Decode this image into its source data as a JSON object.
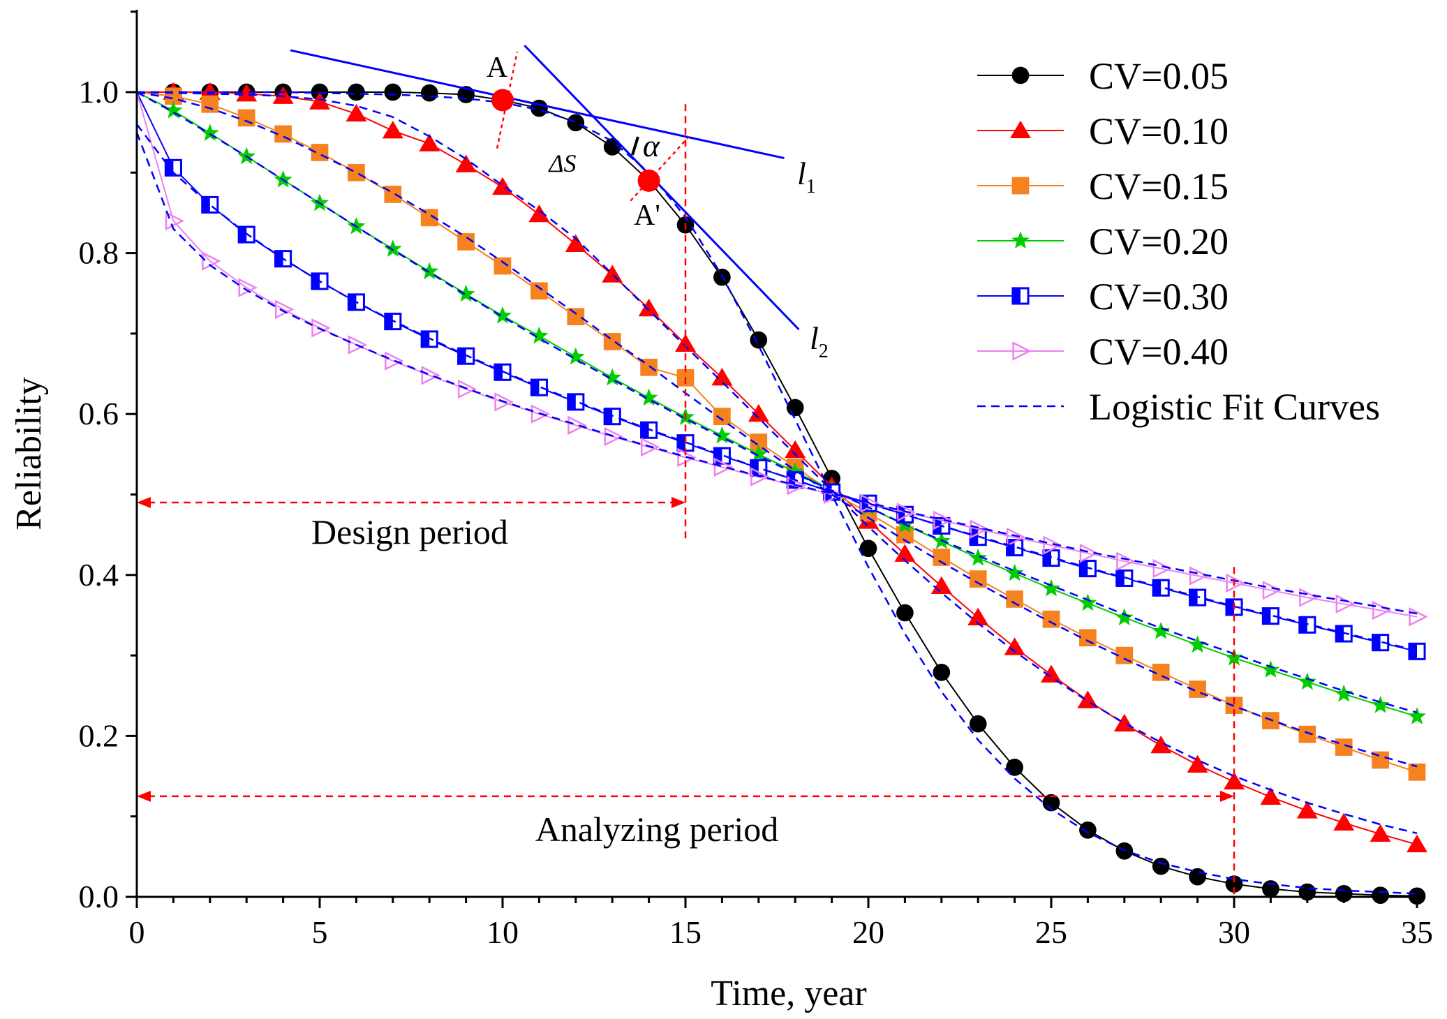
{
  "chart_data": {
    "type": "line",
    "title": "",
    "xlabel": "Time, year",
    "ylabel": "Reliability",
    "xlim": [
      0,
      35
    ],
    "ylim": [
      0,
      1.1
    ],
    "xticks": [
      0,
      5,
      10,
      15,
      20,
      25,
      30,
      35
    ],
    "yticks": [
      0.0,
      0.2,
      0.4,
      0.6,
      0.8,
      1.0
    ],
    "xtick_labels": [
      "0",
      "5",
      "10",
      "15",
      "20",
      "25",
      "30",
      "35"
    ],
    "ytick_labels": [
      "0.0",
      "0.2",
      "0.4",
      "0.6",
      "0.8",
      "1.0"
    ],
    "legend_position": "top-right",
    "x": [
      0,
      1,
      2,
      3,
      4,
      5,
      6,
      7,
      8,
      9,
      10,
      11,
      12,
      13,
      14,
      15,
      16,
      17,
      18,
      19,
      20,
      21,
      22,
      23,
      24,
      25,
      26,
      27,
      28,
      29,
      30,
      31,
      32,
      33,
      34,
      35
    ],
    "series": [
      {
        "name": "CV=0.05",
        "marker": "circle",
        "color": "#000000",
        "values": [
          1.0,
          1.0,
          1.0,
          1.0,
          1.0,
          1.0,
          1.0,
          1.0,
          0.999,
          0.997,
          0.99,
          0.98,
          0.962,
          0.932,
          0.89,
          0.835,
          0.77,
          0.692,
          0.608,
          0.52,
          0.433,
          0.353,
          0.279,
          0.215,
          0.161,
          0.117,
          0.083,
          0.057,
          0.038,
          0.025,
          0.016,
          0.01,
          0.006,
          0.004,
          0.002,
          0.001
        ]
      },
      {
        "name": "CV=0.10",
        "marker": "triangle",
        "color": "#ff0000",
        "values": [
          1.0,
          1.0,
          1.0,
          0.998,
          0.995,
          0.988,
          0.973,
          0.952,
          0.936,
          0.91,
          0.882,
          0.848,
          0.811,
          0.773,
          0.731,
          0.687,
          0.645,
          0.6,
          0.555,
          0.51,
          0.467,
          0.426,
          0.386,
          0.347,
          0.31,
          0.276,
          0.244,
          0.215,
          0.188,
          0.164,
          0.143,
          0.124,
          0.107,
          0.092,
          0.078,
          0.065
        ]
      },
      {
        "name": "CV=0.15",
        "marker": "square",
        "color": "#f5821f",
        "values": [
          1.0,
          0.995,
          0.985,
          0.968,
          0.948,
          0.925,
          0.9,
          0.873,
          0.844,
          0.814,
          0.784,
          0.753,
          0.721,
          0.69,
          0.658,
          0.645,
          0.597,
          0.565,
          0.534,
          0.503,
          0.477,
          0.45,
          0.422,
          0.395,
          0.37,
          0.345,
          0.322,
          0.3,
          0.279,
          0.258,
          0.238,
          0.219,
          0.202,
          0.186,
          0.17,
          0.155
        ]
      },
      {
        "name": "CV=0.20",
        "marker": "star",
        "color": "#00cc00",
        "values": [
          1.0,
          0.977,
          0.949,
          0.92,
          0.891,
          0.862,
          0.833,
          0.805,
          0.777,
          0.749,
          0.722,
          0.697,
          0.671,
          0.645,
          0.62,
          0.596,
          0.573,
          0.55,
          0.528,
          0.506,
          0.484,
          0.462,
          0.442,
          0.421,
          0.402,
          0.383,
          0.365,
          0.347,
          0.33,
          0.313,
          0.297,
          0.282,
          0.267,
          0.252,
          0.238,
          0.224
        ]
      },
      {
        "name": "CV=0.30",
        "marker": "halfsquare",
        "color": "#0000ff",
        "values": [
          1.0,
          0.906,
          0.86,
          0.823,
          0.793,
          0.765,
          0.739,
          0.715,
          0.693,
          0.672,
          0.652,
          0.633,
          0.615,
          0.597,
          0.58,
          0.564,
          0.548,
          0.533,
          0.518,
          0.503,
          0.489,
          0.475,
          0.461,
          0.447,
          0.434,
          0.421,
          0.408,
          0.396,
          0.384,
          0.372,
          0.36,
          0.349,
          0.338,
          0.327,
          0.316,
          0.305
        ]
      },
      {
        "name": "CV=0.40",
        "marker": "triangle-right",
        "color": "#ee82ee",
        "values": [
          1.0,
          0.84,
          0.79,
          0.757,
          0.73,
          0.707,
          0.686,
          0.666,
          0.648,
          0.631,
          0.615,
          0.6,
          0.586,
          0.572,
          0.559,
          0.546,
          0.534,
          0.522,
          0.511,
          0.5,
          0.489,
          0.478,
          0.468,
          0.457,
          0.447,
          0.437,
          0.427,
          0.417,
          0.408,
          0.399,
          0.39,
          0.381,
          0.372,
          0.364,
          0.356,
          0.348
        ]
      }
    ],
    "fit_legend": "Logistic Fit Curves",
    "fit_series": [
      {
        "values": [
          1.0,
          1.0,
          1.0,
          1.0,
          1.0,
          0.999,
          0.998,
          0.997,
          0.995,
          0.992,
          0.987,
          0.978,
          0.963,
          0.939,
          0.9,
          0.845,
          0.772,
          0.685,
          0.593,
          0.5,
          0.41,
          0.327,
          0.255,
          0.195,
          0.147,
          0.109,
          0.08,
          0.058,
          0.042,
          0.031,
          0.022,
          0.016,
          0.011,
          0.008,
          0.006,
          0.004
        ]
      },
      {
        "values": [
          1.0,
          0.999,
          0.998,
          0.997,
          0.995,
          0.991,
          0.983,
          0.969,
          0.945,
          0.917,
          0.884,
          0.853,
          0.818,
          0.774,
          0.729,
          0.684,
          0.64,
          0.595,
          0.55,
          0.505,
          0.46,
          0.418,
          0.378,
          0.34,
          0.305,
          0.273,
          0.243,
          0.216,
          0.192,
          0.17,
          0.15,
          0.133,
          0.117,
          0.103,
          0.09,
          0.079
        ]
      },
      {
        "values": [
          1.0,
          0.992,
          0.98,
          0.964,
          0.945,
          0.923,
          0.9,
          0.875,
          0.848,
          0.82,
          0.789,
          0.757,
          0.725,
          0.692,
          0.66,
          0.626,
          0.593,
          0.561,
          0.53,
          0.5,
          0.471,
          0.443,
          0.416,
          0.39,
          0.365,
          0.341,
          0.318,
          0.296,
          0.275,
          0.255,
          0.237,
          0.22,
          0.204,
          0.189,
          0.175,
          0.162
        ]
      },
      {
        "values": [
          1.0,
          0.975,
          0.948,
          0.92,
          0.891,
          0.862,
          0.833,
          0.804,
          0.776,
          0.748,
          0.721,
          0.694,
          0.668,
          0.643,
          0.618,
          0.594,
          0.571,
          0.548,
          0.526,
          0.505,
          0.484,
          0.463,
          0.443,
          0.424,
          0.405,
          0.387,
          0.369,
          0.351,
          0.334,
          0.318,
          0.302,
          0.286,
          0.271,
          0.256,
          0.242,
          0.229
        ]
      },
      {
        "values": [
          0.96,
          0.9,
          0.86,
          0.824,
          0.793,
          0.765,
          0.739,
          0.716,
          0.694,
          0.673,
          0.653,
          0.634,
          0.616,
          0.598,
          0.581,
          0.565,
          0.549,
          0.533,
          0.518,
          0.503,
          0.489,
          0.475,
          0.461,
          0.448,
          0.435,
          0.422,
          0.409,
          0.397,
          0.385,
          0.373,
          0.361,
          0.35,
          0.339,
          0.328,
          0.317,
          0.306
        ]
      },
      {
        "values": [
          0.95,
          0.83,
          0.785,
          0.754,
          0.728,
          0.706,
          0.686,
          0.667,
          0.649,
          0.632,
          0.616,
          0.601,
          0.587,
          0.573,
          0.56,
          0.547,
          0.535,
          0.523,
          0.512,
          0.501,
          0.49,
          0.479,
          0.469,
          0.459,
          0.449,
          0.439,
          0.429,
          0.42,
          0.411,
          0.402,
          0.393,
          0.384,
          0.376,
          0.368,
          0.36,
          0.352
        ]
      }
    ],
    "annotations": {
      "point_A_label": "A",
      "point_A_prime_label": "A'",
      "point_A": [
        10,
        0.99
      ],
      "point_A_prime": [
        14,
        0.89
      ],
      "delta_s_label": "ΔS",
      "alpha_label": "α",
      "l1_label": "l",
      "l1_sub": "1",
      "l2_label": "l",
      "l2_sub": "2",
      "l1_line": [
        [
          4.2,
          1.052
        ],
        [
          17.7,
          0.918
        ]
      ],
      "l2_line": [
        [
          10.6,
          1.058
        ],
        [
          18.1,
          0.705
        ]
      ],
      "design_period_label": "Design period",
      "design_period_range": [
        0,
        15
      ],
      "design_period_y": 0.49,
      "analyzing_period_label": "Analyzing period",
      "analyzing_period_range": [
        0,
        30
      ],
      "analyzing_period_y": 0.125,
      "vline_15": 15,
      "vline_30": 30
    }
  }
}
